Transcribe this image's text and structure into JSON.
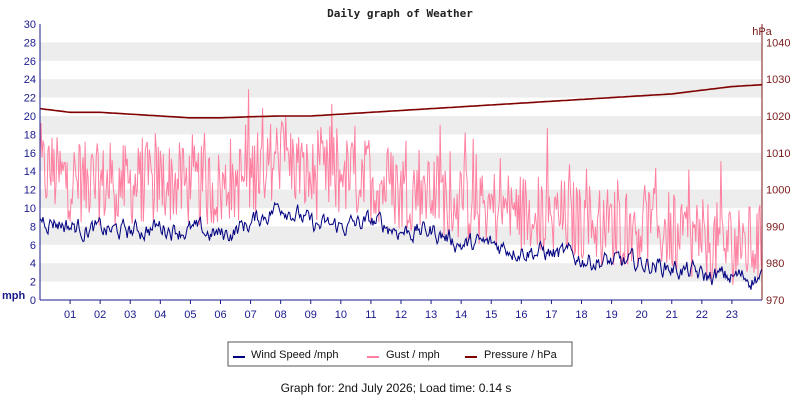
{
  "chart_data": {
    "type": "line",
    "title": "Daily graph of Weather",
    "y_left": {
      "unit": "mph",
      "range": [
        0,
        30
      ],
      "ticks": [
        "0",
        "2",
        "4",
        "6",
        "8",
        "10",
        "12",
        "14",
        "16",
        "18",
        "20",
        "22",
        "24",
        "26",
        "28",
        "30"
      ]
    },
    "y_right": {
      "unit": "hPa",
      "range": [
        970,
        1045
      ],
      "ticks": [
        "970",
        "980",
        "990",
        "1000",
        "1010",
        "1020",
        "1030",
        "1040"
      ]
    },
    "x": {
      "categories": [
        "01",
        "02",
        "03",
        "04",
        "05",
        "06",
        "07",
        "08",
        "09",
        "10",
        "11",
        "12",
        "13",
        "14",
        "15",
        "16",
        "17",
        "18",
        "19",
        "20",
        "21",
        "22",
        "23"
      ],
      "range_hours": [
        0,
        24
      ]
    },
    "grid": true,
    "legend_position": "bottom-center",
    "series": [
      {
        "name": "Wind Speed /mph",
        "axis": "left",
        "color": "#000080",
        "hourly": [
          9.0,
          8.0,
          7.5,
          7.5,
          8.0,
          7.5,
          7.0,
          8.5,
          10.5,
          8.0,
          8.0,
          8.5,
          7.5,
          7.5,
          6.0,
          6.0,
          5.5,
          5.0,
          4.5,
          4.0,
          4.0,
          3.5,
          2.5,
          2.5,
          2.5
        ]
      },
      {
        "name": "Gust / mph",
        "axis": "left",
        "color": "#ff80a0",
        "hourly": [
          14.0,
          13.0,
          12.5,
          12.5,
          13.0,
          12.5,
          12.0,
          13.5,
          16.0,
          13.0,
          13.5,
          13.0,
          12.0,
          12.0,
          10.5,
          10.0,
          9.5,
          9.0,
          8.5,
          8.0,
          8.0,
          7.5,
          6.5,
          6.0,
          6.0
        ]
      },
      {
        "name": "Pressure / hPa",
        "axis": "right",
        "color": "#800000",
        "hourly": [
          1022.0,
          1021.0,
          1021.0,
          1020.5,
          1020.0,
          1019.5,
          1019.5,
          1019.8,
          1020.0,
          1020.0,
          1020.5,
          1021.0,
          1021.5,
          1022.0,
          1022.5,
          1023.0,
          1023.5,
          1024.0,
          1024.5,
          1025.0,
          1025.5,
          1026.0,
          1027.0,
          1028.0,
          1028.5
        ]
      }
    ]
  },
  "footer": {
    "text": "Graph for: 2nd July 2026; Load time: 0.14 s"
  }
}
